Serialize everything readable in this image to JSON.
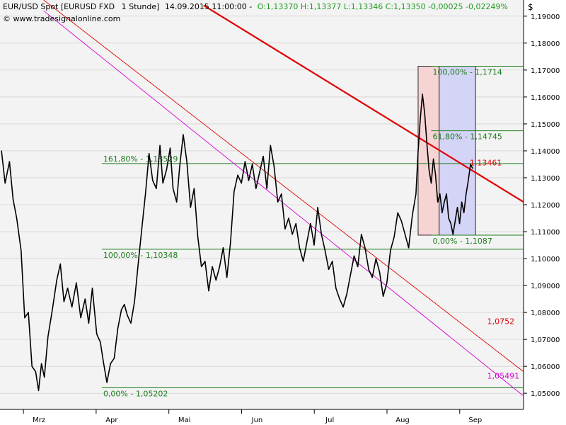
{
  "header": {
    "instrument": "EUR/USD Spot [EURUSD FXD",
    "interval": "1 Stunde]",
    "datetime": "14.09.2015 11:00:00 -",
    "ohlc": "O:1,13370 H:1,13377 L:1,13346 C:1,13350 -0,00025 -0,02249%",
    "watermark": "© www.tradesignalonline.com",
    "currency_symbol": "$"
  },
  "colors": {
    "background": "#f3f3f3",
    "price": "#000000",
    "fib_green": "#1e7d1e",
    "trend_red_thick": "#e00000",
    "trend_red_thin": "#e00000",
    "trend_magenta": "#d400d4",
    "fib_box_left": "#f6d4d4",
    "fib_box_right": "#d4d4f6",
    "grid": "#c8c8c8"
  },
  "chart_data": {
    "type": "line",
    "title": "EUR/USD Spot [EURUSD FXD  1 Stunde]",
    "xlabel": "",
    "ylabel": "",
    "x_ticks": [
      "Mrz",
      "Apr",
      "Mai",
      "Jun",
      "Jul",
      "Aug",
      "Sep"
    ],
    "x_tick_pos": [
      0.6,
      1.6,
      2.6,
      3.6,
      4.6,
      5.6,
      6.6
    ],
    "xlim": [
      0.2,
      7.4
    ],
    "ylim": [
      1.044,
      1.196
    ],
    "y_ticks": [
      "1,05000",
      "1,06000",
      "1,07000",
      "1,08000",
      "1,09000",
      "1,10000",
      "1,11000",
      "1,12000",
      "1,13000",
      "1,14000",
      "1,15000",
      "1,16000",
      "1,17000",
      "1,18000",
      "1,19000"
    ],
    "y_tick_values": [
      1.05,
      1.06,
      1.07,
      1.08,
      1.09,
      1.1,
      1.11,
      1.12,
      1.13,
      1.14,
      1.15,
      1.16,
      1.17,
      1.18,
      1.19
    ],
    "grid": "horizontal",
    "series": [
      {
        "values": [
          [
            0.22,
            1.14
          ],
          [
            0.27,
            1.128
          ],
          [
            0.33,
            1.136
          ],
          [
            0.38,
            1.122
          ],
          [
            0.43,
            1.115
          ],
          [
            0.49,
            1.103
          ],
          [
            0.54,
            1.078
          ],
          [
            0.59,
            1.08
          ],
          [
            0.64,
            1.06
          ],
          [
            0.69,
            1.058
          ],
          [
            0.73,
            1.051
          ],
          [
            0.77,
            1.061
          ],
          [
            0.81,
            1.056
          ],
          [
            0.86,
            1.071
          ],
          [
            0.92,
            1.081
          ],
          [
            0.98,
            1.092
          ],
          [
            1.03,
            1.098
          ],
          [
            1.08,
            1.084
          ],
          [
            1.13,
            1.089
          ],
          [
            1.19,
            1.082
          ],
          [
            1.25,
            1.091
          ],
          [
            1.31,
            1.078
          ],
          [
            1.37,
            1.085
          ],
          [
            1.42,
            1.076
          ],
          [
            1.47,
            1.089
          ],
          [
            1.53,
            1.072
          ],
          [
            1.58,
            1.069
          ],
          [
            1.62,
            1.062
          ],
          [
            1.67,
            1.054
          ],
          [
            1.72,
            1.061
          ],
          [
            1.77,
            1.063
          ],
          [
            1.82,
            1.074
          ],
          [
            1.87,
            1.081
          ],
          [
            1.91,
            1.083
          ],
          [
            1.95,
            1.079
          ],
          [
            2.0,
            1.076
          ],
          [
            2.05,
            1.084
          ],
          [
            2.1,
            1.098
          ],
          [
            2.15,
            1.111
          ],
          [
            2.2,
            1.124
          ],
          [
            2.25,
            1.139
          ],
          [
            2.3,
            1.129
          ],
          [
            2.35,
            1.126
          ],
          [
            2.4,
            1.142
          ],
          [
            2.44,
            1.128
          ],
          [
            2.49,
            1.133
          ],
          [
            2.54,
            1.141
          ],
          [
            2.58,
            1.126
          ],
          [
            2.63,
            1.121
          ],
          [
            2.67,
            1.134
          ],
          [
            2.72,
            1.146
          ],
          [
            2.77,
            1.136
          ],
          [
            2.82,
            1.119
          ],
          [
            2.87,
            1.126
          ],
          [
            2.92,
            1.108
          ],
          [
            2.97,
            1.097
          ],
          [
            3.02,
            1.099
          ],
          [
            3.07,
            1.088
          ],
          [
            3.12,
            1.097
          ],
          [
            3.17,
            1.092
          ],
          [
            3.22,
            1.097
          ],
          [
            3.27,
            1.104
          ],
          [
            3.32,
            1.093
          ],
          [
            3.37,
            1.106
          ],
          [
            3.42,
            1.125
          ],
          [
            3.47,
            1.131
          ],
          [
            3.52,
            1.128
          ],
          [
            3.57,
            1.136
          ],
          [
            3.62,
            1.129
          ],
          [
            3.67,
            1.135
          ],
          [
            3.72,
            1.126
          ],
          [
            3.77,
            1.132
          ],
          [
            3.82,
            1.138
          ],
          [
            3.87,
            1.126
          ],
          [
            3.92,
            1.142
          ],
          [
            3.97,
            1.134
          ],
          [
            4.02,
            1.121
          ],
          [
            4.07,
            1.124
          ],
          [
            4.12,
            1.111
          ],
          [
            4.17,
            1.115
          ],
          [
            4.22,
            1.109
          ],
          [
            4.27,
            1.113
          ],
          [
            4.32,
            1.104
          ],
          [
            4.37,
            1.099
          ],
          [
            4.42,
            1.106
          ],
          [
            4.47,
            1.113
          ],
          [
            4.52,
            1.105
          ],
          [
            4.57,
            1.119
          ],
          [
            4.62,
            1.109
          ],
          [
            4.67,
            1.103
          ],
          [
            4.72,
            1.096
          ],
          [
            4.77,
            1.099
          ],
          [
            4.82,
            1.089
          ],
          [
            4.87,
            1.085
          ],
          [
            4.92,
            1.082
          ],
          [
            4.97,
            1.087
          ],
          [
            5.02,
            1.094
          ],
          [
            5.07,
            1.101
          ],
          [
            5.12,
            1.097
          ],
          [
            5.17,
            1.109
          ],
          [
            5.22,
            1.104
          ],
          [
            5.27,
            1.096
          ],
          [
            5.32,
            1.093
          ],
          [
            5.37,
            1.1
          ],
          [
            5.42,
            1.095
          ],
          [
            5.47,
            1.086
          ],
          [
            5.52,
            1.091
          ],
          [
            5.57,
            1.103
          ],
          [
            5.62,
            1.108
          ],
          [
            5.67,
            1.117
          ],
          [
            5.72,
            1.114
          ],
          [
            5.77,
            1.109
          ],
          [
            5.82,
            1.104
          ],
          [
            5.87,
            1.116
          ],
          [
            5.92,
            1.124
          ],
          [
            5.95,
            1.14
          ],
          [
            5.98,
            1.152
          ],
          [
            6.01,
            1.161
          ],
          [
            6.04,
            1.154
          ],
          [
            6.07,
            1.143
          ],
          [
            6.1,
            1.133
          ],
          [
            6.13,
            1.128
          ],
          [
            6.16,
            1.137
          ],
          [
            6.19,
            1.131
          ],
          [
            6.22,
            1.121
          ],
          [
            6.25,
            1.124
          ],
          [
            6.28,
            1.117
          ],
          [
            6.31,
            1.121
          ],
          [
            6.34,
            1.124
          ],
          [
            6.37,
            1.115
          ],
          [
            6.4,
            1.113
          ],
          [
            6.43,
            1.109
          ],
          [
            6.46,
            1.114
          ],
          [
            6.49,
            1.119
          ],
          [
            6.52,
            1.113
          ],
          [
            6.55,
            1.121
          ],
          [
            6.58,
            1.117
          ],
          [
            6.61,
            1.124
          ],
          [
            6.64,
            1.129
          ],
          [
            6.67,
            1.135
          ],
          [
            6.7,
            1.1335
          ]
        ]
      }
    ],
    "fib_levels": [
      {
        "label": "161,80% - 1,13529",
        "value": 1.13529,
        "x_start": 1.6,
        "label_x": 1.62,
        "label_pos": "above"
      },
      {
        "label": "100,00% - 1,10348",
        "value": 1.10348,
        "x_start": 1.6,
        "label_x": 1.62,
        "label_pos": "below"
      },
      {
        "label": "0,00% - 1,05202",
        "value": 1.05202,
        "x_start": 1.6,
        "label_x": 1.62,
        "label_pos": "below"
      },
      {
        "label": "100,00% - 1,1714",
        "value": 1.1714,
        "x_start": 6.13,
        "label_x": 6.15,
        "label_pos": "below"
      },
      {
        "label": "61,80% - 1,14745",
        "value": 1.14745,
        "x_start": 6.13,
        "label_x": 6.15,
        "label_pos": "below"
      },
      {
        "label": "0,00% - 1,1087",
        "value": 1.1087,
        "x_start": 6.13,
        "label_x": 6.15,
        "label_pos": "below"
      }
    ],
    "fib_boxes": [
      {
        "x0": 5.95,
        "x1": 6.24,
        "y0": 1.1087,
        "y1": 1.1714,
        "color": "left"
      },
      {
        "x0": 6.24,
        "x1": 6.74,
        "y0": 1.1087,
        "y1": 1.1714,
        "color": "right"
      }
    ],
    "trendlines": [
      {
        "x0": 3.0,
        "y0": 1.194,
        "x1": 7.4,
        "y1": 1.121,
        "style": "thick",
        "label": "1,13461",
        "label_x": 6.66,
        "label_y": 1.13461
      },
      {
        "x0": 0.8,
        "y0": 1.196,
        "x1": 7.4,
        "y1": 1.058,
        "style": "thin",
        "label": "1,0752",
        "label_x": 6.9,
        "label_y": 1.0752
      },
      {
        "x0": 0.8,
        "y0": 1.192,
        "x1": 7.4,
        "y1": 1.049,
        "style": "magenta",
        "label": "1,05491",
        "label_x": 6.9,
        "label_y": 1.05491
      }
    ]
  }
}
